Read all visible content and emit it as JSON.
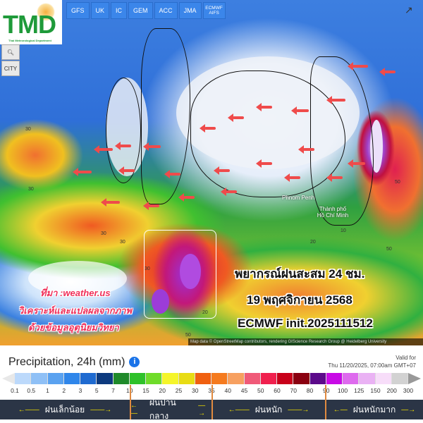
{
  "logo": {
    "text": "TMD",
    "subtitle": "Thai Meteorological Department"
  },
  "models": [
    "GFS",
    "UK",
    "IC",
    "GEM",
    "ACC",
    "JMA",
    "ECMWF AIFS"
  ],
  "tools": {
    "zoom_icon": "magnifier-minus-icon",
    "city_label": "CITY"
  },
  "share_icon": "share-icon",
  "map": {
    "places": [
      "Phnom Penh",
      "Thành phố Hồ Chí Minh"
    ],
    "contours": [
      "30",
      "30",
      "30",
      "50",
      "50",
      "20",
      "10",
      "30",
      "20",
      "50",
      "30"
    ],
    "arrow_color": "#ef4b4b"
  },
  "overlay": {
    "line1": "พยากรณ์ฝนสะสม 24 ชม.",
    "line2": "19  พฤศจิกายน 2568",
    "line3": "ECMWF init.2025111512",
    "source": "ที่มา :weather.us",
    "analysis1": "วิเคราะห์และแปลผลจากภาพ",
    "analysis2": "ด้วยข้อมูลอุตุนิยมวิทยา"
  },
  "attribution": "Map data © OpenStreetMap contributors, rendering GIScience Research Group @ Heidelberg University",
  "legend": {
    "title": "Precipitation, 24h (mm)",
    "valid_label": "Valid for",
    "valid_time": "Thu 11/20/2025, 07:00am GMT+07",
    "colors": [
      "#bcd9fb",
      "#8fc0f6",
      "#5aa2f0",
      "#2f86ea",
      "#1f6ad0",
      "#0d3a7e",
      "#1f8a2a",
      "#2fc12a",
      "#6fdc2a",
      "#f5f52a",
      "#e8dc14",
      "#f06010",
      "#f57a1e",
      "#f7a060",
      "#f05a78",
      "#f0204e",
      "#c8001a",
      "#8a0010",
      "#5c0a8a",
      "#c80ae6",
      "#de6aee",
      "#eab2f4",
      "#f7ddf9",
      "#d2d2d2"
    ],
    "ticks": [
      "0.1",
      "0.5",
      "1",
      "2",
      "3",
      "5",
      "7",
      "10",
      "15",
      "20",
      "25",
      "30",
      "35",
      "40",
      "45",
      "50",
      "60",
      "70",
      "80",
      "90",
      "100",
      "125",
      "150",
      "200",
      "300"
    ],
    "categories": [
      "ฝนเล็กน้อย",
      "ฝนปานกลาง",
      "ฝนหนัก",
      "ฝนหนักมาก"
    ]
  }
}
